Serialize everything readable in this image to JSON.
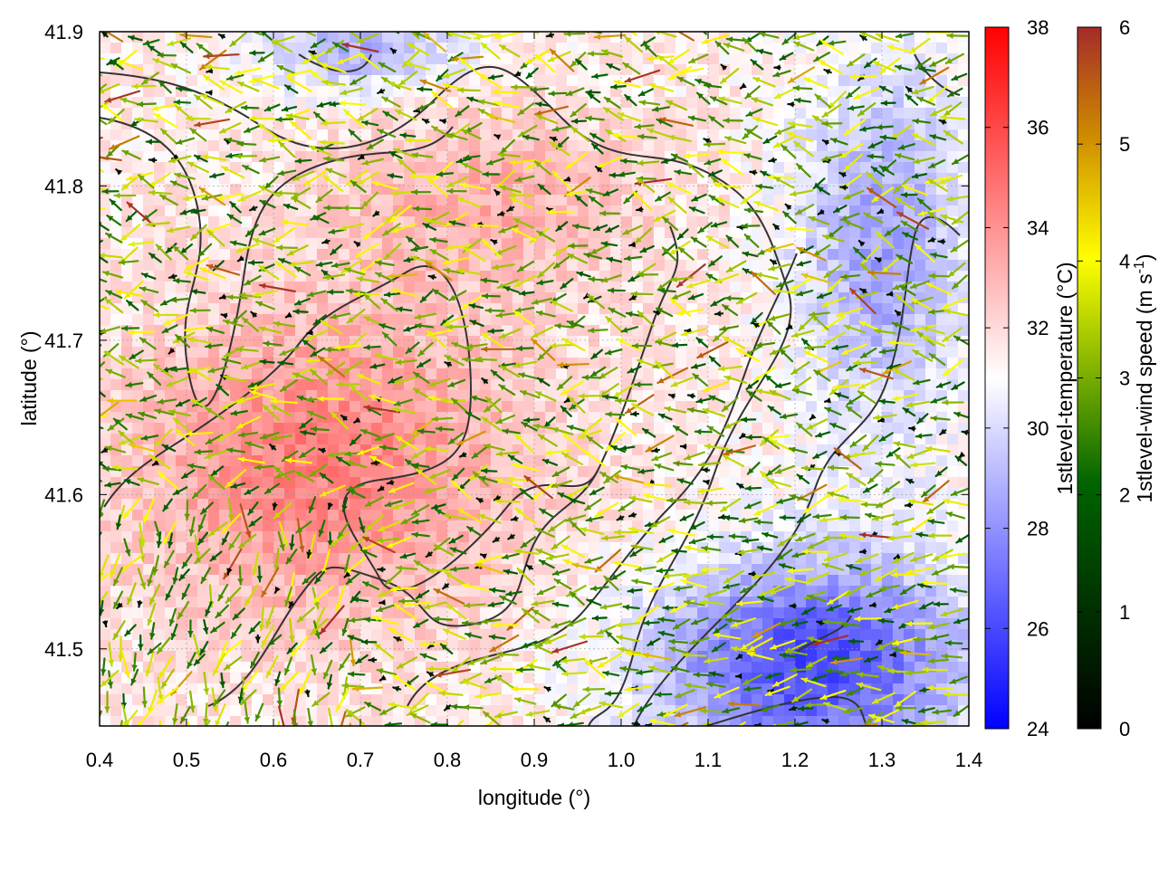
{
  "chart_data": {
    "type": "heatmap",
    "xlabel": "longitude (°)",
    "ylabel": "latitude (°)",
    "xlim": [
      0.4,
      1.4
    ],
    "ylim": [
      41.45,
      41.9
    ],
    "x_ticks": [
      "0.4",
      "0.5",
      "0.6",
      "0.7",
      "0.8",
      "0.9",
      "1.0",
      "1.1",
      "1.2",
      "1.3",
      "1.4"
    ],
    "y_ticks": [
      "41.5",
      "41.6",
      "41.7",
      "41.8",
      "41.9"
    ],
    "grid": true,
    "colorbars": [
      {
        "label": "1stlevel-temperature (°C)",
        "range": [
          24,
          38
        ],
        "ticks": [
          "24",
          "26",
          "28",
          "30",
          "32",
          "34",
          "36",
          "38"
        ],
        "colors": [
          "#0000ff",
          "#ffffff",
          "#ff0000"
        ]
      },
      {
        "label_main": "1stlevel-wind speed (m s",
        "label_sup": "-1",
        "label_end": ")",
        "range": [
          0,
          6
        ],
        "ticks": [
          "0",
          "1",
          "2",
          "3",
          "4",
          "5",
          "6"
        ],
        "colors": [
          "#000000",
          "#006400",
          "#ffff00",
          "#a52a2a"
        ]
      }
    ],
    "temperature_pattern": {
      "warm_core": {
        "lon": 0.66,
        "lat": 41.62,
        "value": 34.5
      },
      "north_warm": {
        "lon": 0.85,
        "lat": 41.79,
        "value": 33.2
      },
      "cold_southeast": {
        "lon": 1.22,
        "lat": 41.49,
        "value": 26.0
      },
      "cold_northeast_band": {
        "lon": 1.3,
        "lat": 41.76,
        "value": 28.5
      },
      "cold_north": {
        "lon": 0.7,
        "lat": 41.89,
        "value": 28.8
      },
      "background": 31.5
    },
    "wind_pattern": {
      "description_free": false,
      "speed_min": 0.1,
      "speed_max": 6,
      "dominant_speed": [
        2,
        4
      ]
    },
    "contour_lines": "terrain contours drawn as dark grey lines"
  }
}
